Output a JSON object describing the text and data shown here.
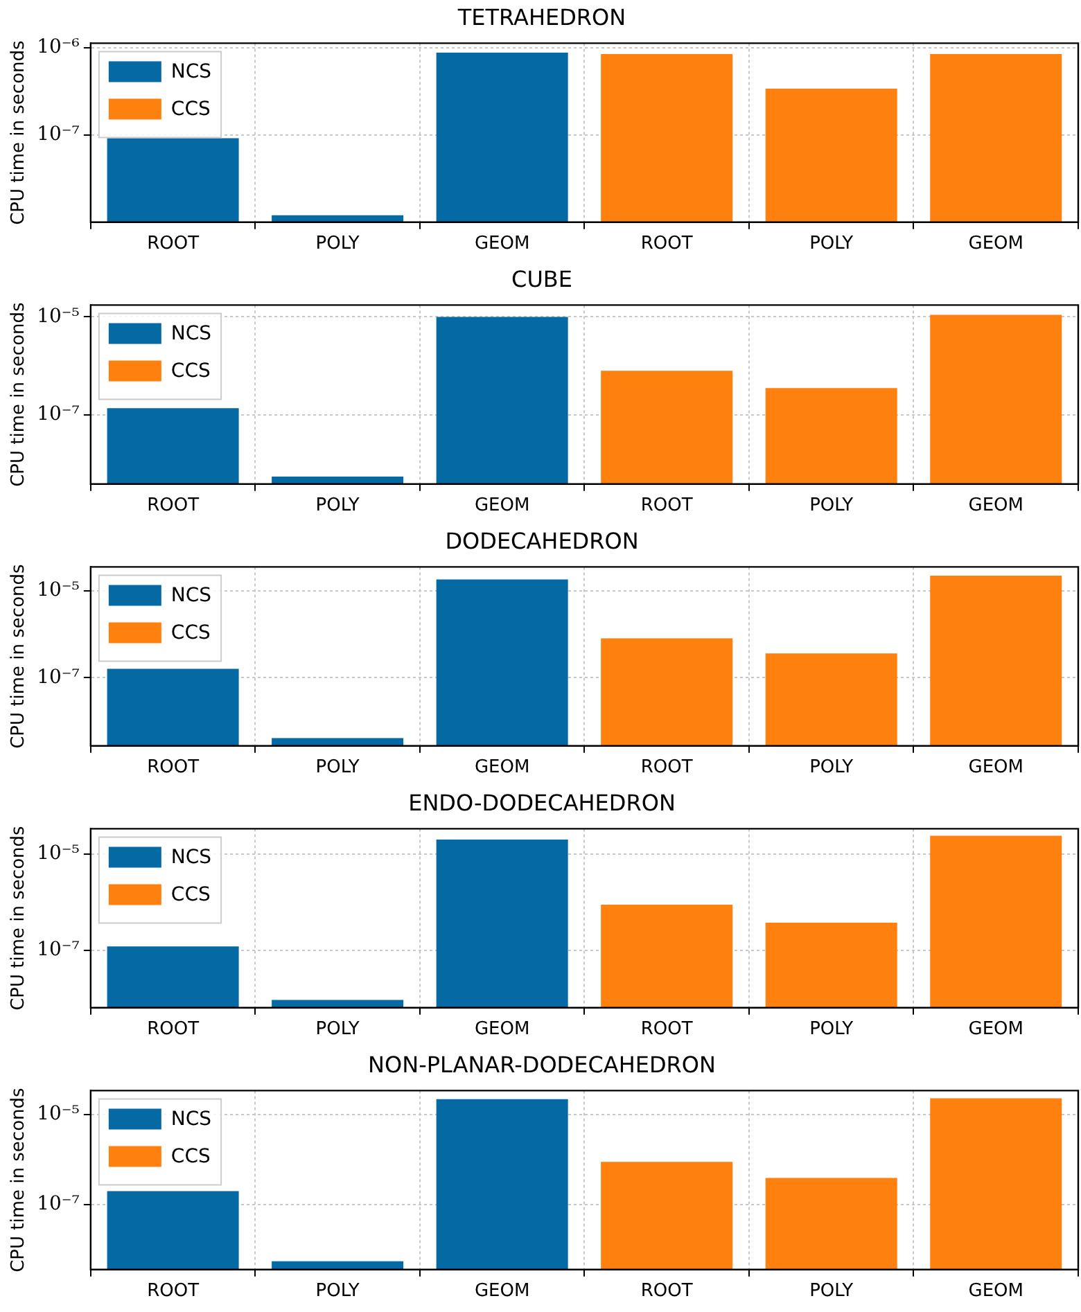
{
  "chart_data": [
    {
      "type": "bar",
      "title": "TETRAHEDRON",
      "ylabel": "CPU time in seconds",
      "categories": [
        "ROOT",
        "POLY",
        "GEOM",
        "ROOT",
        "POLY",
        "GEOM"
      ],
      "series": [
        {
          "name": "NCS",
          "color": "#0569a4",
          "values": [
            9.2e-08,
            1.2e-08,
            8.8e-07,
            null,
            null,
            null
          ]
        },
        {
          "name": "CCS",
          "color": "#fe800e",
          "values": [
            null,
            null,
            null,
            8.5e-07,
            3.4e-07,
            8.5e-07
          ]
        }
      ],
      "log": true,
      "ylim": [
        1e-08,
        1.13e-06
      ],
      "yticks": [
        {
          "value": 1e-07,
          "label": "10⁻⁷"
        },
        {
          "value": 1e-06,
          "label": "10⁻⁶"
        }
      ],
      "grid": true,
      "legend": "top left"
    },
    {
      "type": "bar",
      "title": "CUBE",
      "ylabel": "CPU time in seconds",
      "categories": [
        "ROOT",
        "POLY",
        "GEOM",
        "ROOT",
        "POLY",
        "GEOM"
      ],
      "series": [
        {
          "name": "NCS",
          "color": "#0569a4",
          "values": [
            1.35e-07,
            5.4e-09,
            1e-05,
            null,
            null,
            null
          ]
        },
        {
          "name": "CCS",
          "color": "#fe800e",
          "values": [
            null,
            null,
            null,
            7.9e-07,
            3.5e-07,
            1.1e-05
          ]
        }
      ],
      "log": true,
      "ylim": [
        3.8e-09,
        1.74e-05
      ],
      "yticks": [
        {
          "value": 1e-07,
          "label": "10⁻⁷"
        },
        {
          "value": 1e-05,
          "label": "10⁻⁵"
        }
      ],
      "grid": true,
      "legend": "top left"
    },
    {
      "type": "bar",
      "title": "DODECAHEDRON",
      "ylabel": "CPU time in seconds",
      "categories": [
        "ROOT",
        "POLY",
        "GEOM",
        "ROOT",
        "POLY",
        "GEOM"
      ],
      "series": [
        {
          "name": "NCS",
          "color": "#0569a4",
          "values": [
            1.6e-07,
            4.1e-09,
            1.8e-05,
            null,
            null,
            null
          ]
        },
        {
          "name": "CCS",
          "color": "#fe800e",
          "values": [
            null,
            null,
            null,
            8e-07,
            3.6e-07,
            2.2e-05
          ]
        }
      ],
      "log": true,
      "ylim": [
        2.7e-09,
        3.5e-05
      ],
      "yticks": [
        {
          "value": 1e-07,
          "label": "10⁻⁷"
        },
        {
          "value": 1e-05,
          "label": "10⁻⁵"
        }
      ],
      "grid": true,
      "legend": "top left"
    },
    {
      "type": "bar",
      "title": "ENDO-DODECAHEDRON",
      "ylabel": "CPU time in seconds",
      "categories": [
        "ROOT",
        "POLY",
        "GEOM",
        "ROOT",
        "POLY",
        "GEOM"
      ],
      "series": [
        {
          "name": "NCS",
          "color": "#0569a4",
          "values": [
            1.2e-07,
            9.3e-09,
            2e-05,
            null,
            null,
            null
          ]
        },
        {
          "name": "CCS",
          "color": "#fe800e",
          "values": [
            null,
            null,
            null,
            8.9e-07,
            3.75e-07,
            2.4e-05
          ]
        }
      ],
      "log": true,
      "ylim": [
        6.4e-09,
        3.35e-05
      ],
      "yticks": [
        {
          "value": 1e-07,
          "label": "10⁻⁷"
        },
        {
          "value": 1e-05,
          "label": "10⁻⁵"
        }
      ],
      "grid": true,
      "legend": "top left"
    },
    {
      "type": "bar",
      "title": "NON-PLANAR-DODECAHEDRON",
      "ylabel": "CPU time in seconds",
      "categories": [
        "ROOT",
        "POLY",
        "GEOM",
        "ROOT",
        "POLY",
        "GEOM"
      ],
      "series": [
        {
          "name": "NCS",
          "color": "#0569a4",
          "values": [
            2e-07,
            5.5e-09,
            2.2e-05,
            null,
            null,
            null
          ]
        },
        {
          "name": "CCS",
          "color": "#fe800e",
          "values": [
            null,
            null,
            null,
            8.9e-07,
            3.9e-07,
            2.3e-05
          ]
        }
      ],
      "log": true,
      "ylim": [
        3.6e-09,
        3.4e-05
      ],
      "yticks": [
        {
          "value": 1e-07,
          "label": "10⁻⁷"
        },
        {
          "value": 1e-05,
          "label": "10⁻⁵"
        }
      ],
      "grid": true,
      "legend": "top left"
    }
  ]
}
